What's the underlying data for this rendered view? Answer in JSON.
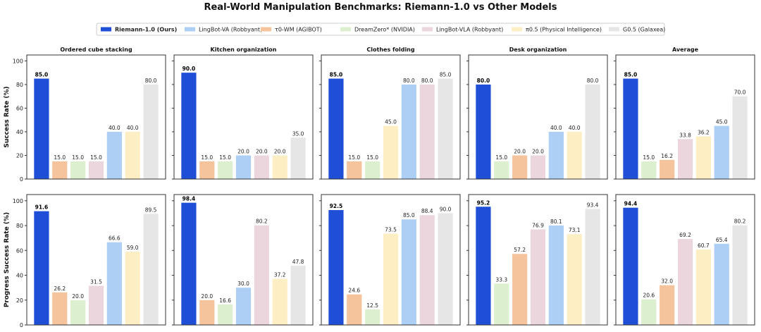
{
  "title": "Real-World Manipulation Benchmarks: Riemann-1.0 vs Other Models",
  "legend": [
    {
      "label": "Riemann-1.0 (Ours)",
      "color": "#1f4fd6",
      "bold": true
    },
    {
      "label": "LingBot-VA (Robbyant)",
      "color": "#aecff5",
      "bold": false
    },
    {
      "label": "τ0-WM (AGIBOT)",
      "color": "#f6c49c",
      "bold": false
    },
    {
      "label": "DreamZero* (NVIDIA)",
      "color": "#dcefcf",
      "bold": false
    },
    {
      "label": "LingBot-VLA (Robbyant)",
      "color": "#ecd6dd",
      "bold": false
    },
    {
      "label": "π0.5 (Physical Intelligence)",
      "color": "#fdeec4",
      "bold": false
    },
    {
      "label": "G0.5 (Galaxea)",
      "color": "#e6e6e6",
      "bold": false
    }
  ],
  "chart_data": {
    "type": "bar",
    "rows": [
      {
        "ylabel": "Success Rate (%)",
        "ylim": [
          0,
          105
        ],
        "yticks": [
          0,
          20,
          40,
          60,
          80,
          100
        ]
      },
      {
        "ylabel": "Progress Success Rate (%)",
        "ylim": [
          0,
          105
        ],
        "yticks": [
          0,
          20,
          40,
          60,
          80,
          100
        ]
      }
    ],
    "panels": [
      {
        "title": "Ordered cube stacking",
        "row": 0,
        "bars": [
          {
            "value": 85.0,
            "label": "85.0",
            "color": "#1f4fd6",
            "bold": true
          },
          {
            "value": 15.0,
            "label": "15.0",
            "color": "#f6c49c"
          },
          {
            "value": 15.0,
            "label": "15.0",
            "color": "#dcefcf"
          },
          {
            "value": 15.0,
            "label": "15.0",
            "color": "#ecd6dd"
          },
          {
            "value": 40.0,
            "label": "40.0",
            "color": "#aecff5"
          },
          {
            "value": 40.0,
            "label": "40.0",
            "color": "#fdeec4"
          },
          {
            "value": 80.0,
            "label": "80.0",
            "color": "#e6e6e6"
          }
        ]
      },
      {
        "title": "Kitchen organization",
        "row": 0,
        "bars": [
          {
            "value": 90.0,
            "label": "90.0",
            "color": "#1f4fd6",
            "bold": true
          },
          {
            "value": 15.0,
            "label": "15.0",
            "color": "#f6c49c"
          },
          {
            "value": 15.0,
            "label": "15.0",
            "color": "#dcefcf"
          },
          {
            "value": 20.0,
            "label": "20.0",
            "color": "#aecff5"
          },
          {
            "value": 20.0,
            "label": "20.0",
            "color": "#ecd6dd"
          },
          {
            "value": 20.0,
            "label": "20.0",
            "color": "#fdeec4"
          },
          {
            "value": 35.0,
            "label": "35.0",
            "color": "#e6e6e6"
          }
        ]
      },
      {
        "title": "Clothes folding",
        "row": 0,
        "bars": [
          {
            "value": 85.0,
            "label": "85.0",
            "color": "#1f4fd6",
            "bold": true
          },
          {
            "value": 15.0,
            "label": "15.0",
            "color": "#f6c49c"
          },
          {
            "value": 15.0,
            "label": "15.0",
            "color": "#dcefcf"
          },
          {
            "value": 45.0,
            "label": "45.0",
            "color": "#fdeec4"
          },
          {
            "value": 80.0,
            "label": "80.0",
            "color": "#aecff5"
          },
          {
            "value": 80.0,
            "label": "80.0",
            "color": "#ecd6dd"
          },
          {
            "value": 85.0,
            "label": "85.0",
            "color": "#e6e6e6"
          }
        ]
      },
      {
        "title": "Desk organization",
        "row": 0,
        "bars": [
          {
            "value": 80.0,
            "label": "80.0",
            "color": "#1f4fd6",
            "bold": true
          },
          {
            "value": 15.0,
            "label": "15.0",
            "color": "#dcefcf"
          },
          {
            "value": 20.0,
            "label": "20.0",
            "color": "#f6c49c"
          },
          {
            "value": 20.0,
            "label": "20.0",
            "color": "#ecd6dd"
          },
          {
            "value": 40.0,
            "label": "40.0",
            "color": "#aecff5"
          },
          {
            "value": 40.0,
            "label": "40.0",
            "color": "#fdeec4"
          },
          {
            "value": 80.0,
            "label": "80.0",
            "color": "#e6e6e6"
          }
        ]
      },
      {
        "title": "Average",
        "row": 0,
        "bars": [
          {
            "value": 85.0,
            "label": "85.0",
            "color": "#1f4fd6",
            "bold": true
          },
          {
            "value": 15.0,
            "label": "15.0",
            "color": "#dcefcf"
          },
          {
            "value": 16.2,
            "label": "16.2",
            "color": "#f6c49c"
          },
          {
            "value": 33.8,
            "label": "33.8",
            "color": "#ecd6dd"
          },
          {
            "value": 36.2,
            "label": "36.2",
            "color": "#fdeec4"
          },
          {
            "value": 45.0,
            "label": "45.0",
            "color": "#aecff5"
          },
          {
            "value": 70.0,
            "label": "70.0",
            "color": "#e6e6e6"
          }
        ]
      },
      {
        "title": "",
        "row": 1,
        "bars": [
          {
            "value": 91.6,
            "label": "91.6",
            "color": "#1f4fd6",
            "bold": true
          },
          {
            "value": 26.2,
            "label": "26.2",
            "color": "#f6c49c"
          },
          {
            "value": 20.0,
            "label": "20.0",
            "color": "#dcefcf"
          },
          {
            "value": 31.5,
            "label": "31.5",
            "color": "#ecd6dd"
          },
          {
            "value": 66.6,
            "label": "66.6",
            "color": "#aecff5"
          },
          {
            "value": 59.0,
            "label": "59.0",
            "color": "#fdeec4"
          },
          {
            "value": 89.5,
            "label": "89.5",
            "color": "#e6e6e6"
          }
        ]
      },
      {
        "title": "",
        "row": 1,
        "bars": [
          {
            "value": 98.4,
            "label": "98.4",
            "color": "#1f4fd6",
            "bold": true
          },
          {
            "value": 20.0,
            "label": "20.0",
            "color": "#f6c49c"
          },
          {
            "value": 16.6,
            "label": "16.6",
            "color": "#dcefcf"
          },
          {
            "value": 30.0,
            "label": "30.0",
            "color": "#aecff5"
          },
          {
            "value": 80.2,
            "label": "80.2",
            "color": "#ecd6dd"
          },
          {
            "value": 37.2,
            "label": "37.2",
            "color": "#fdeec4"
          },
          {
            "value": 47.8,
            "label": "47.8",
            "color": "#e6e6e6"
          }
        ]
      },
      {
        "title": "",
        "row": 1,
        "bars": [
          {
            "value": 92.5,
            "label": "92.5",
            "color": "#1f4fd6",
            "bold": true
          },
          {
            "value": 24.6,
            "label": "24.6",
            "color": "#f6c49c"
          },
          {
            "value": 12.5,
            "label": "12.5",
            "color": "#dcefcf"
          },
          {
            "value": 73.5,
            "label": "73.5",
            "color": "#fdeec4"
          },
          {
            "value": 85.0,
            "label": "85.0",
            "color": "#aecff5"
          },
          {
            "value": 88.4,
            "label": "88.4",
            "color": "#ecd6dd"
          },
          {
            "value": 90.0,
            "label": "90.0",
            "color": "#e6e6e6"
          }
        ]
      },
      {
        "title": "",
        "row": 1,
        "bars": [
          {
            "value": 95.2,
            "label": "95.2",
            "color": "#1f4fd6",
            "bold": true
          },
          {
            "value": 33.3,
            "label": "33.3",
            "color": "#dcefcf"
          },
          {
            "value": 57.2,
            "label": "57.2",
            "color": "#f6c49c"
          },
          {
            "value": 76.9,
            "label": "76.9",
            "color": "#ecd6dd"
          },
          {
            "value": 80.1,
            "label": "80.1",
            "color": "#aecff5"
          },
          {
            "value": 73.1,
            "label": "73.1",
            "color": "#fdeec4"
          },
          {
            "value": 93.4,
            "label": "93.4",
            "color": "#e6e6e6"
          }
        ]
      },
      {
        "title": "",
        "row": 1,
        "bars": [
          {
            "value": 94.4,
            "label": "94.4",
            "color": "#1f4fd6",
            "bold": true
          },
          {
            "value": 20.6,
            "label": "20.6",
            "color": "#dcefcf"
          },
          {
            "value": 32.0,
            "label": "32.0",
            "color": "#f6c49c"
          },
          {
            "value": 69.2,
            "label": "69.2",
            "color": "#ecd6dd"
          },
          {
            "value": 60.7,
            "label": "60.7",
            "color": "#fdeec4"
          },
          {
            "value": 65.4,
            "label": "65.4",
            "color": "#aecff5"
          },
          {
            "value": 80.2,
            "label": "80.2",
            "color": "#e6e6e6"
          }
        ]
      }
    ]
  }
}
